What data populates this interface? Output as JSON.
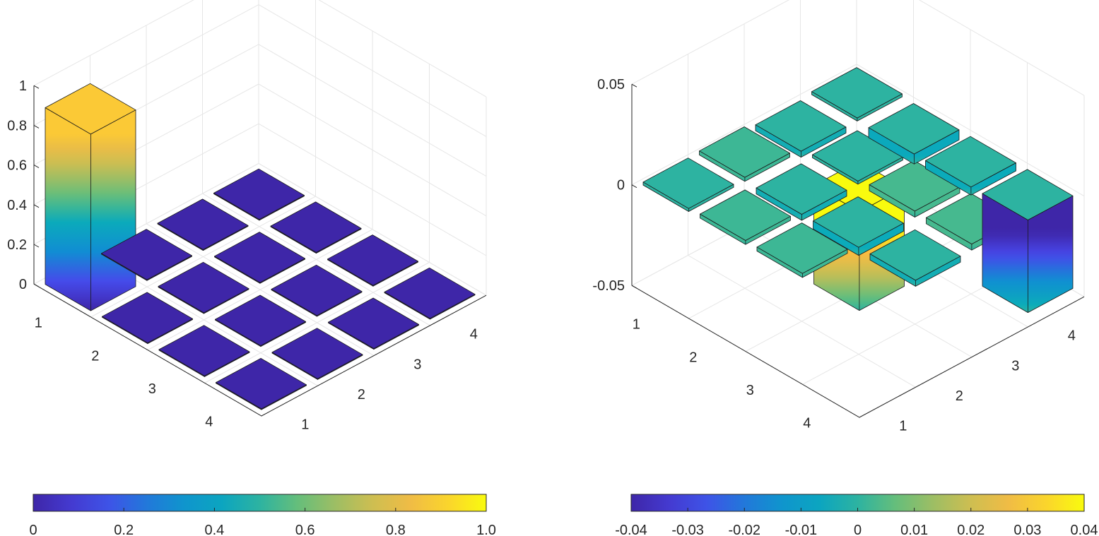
{
  "chart_data": [
    {
      "type": "bar3d",
      "rows": [
        "1",
        "2",
        "3",
        "4"
      ],
      "cols": [
        "1",
        "2",
        "3",
        "4"
      ],
      "z_ticks": [
        "0",
        "0.2",
        "0.4",
        "0.6",
        "0.8",
        "1"
      ],
      "zlim": [
        0,
        1
      ],
      "values": [
        [
          0.89,
          0.0,
          0.0,
          0.0
        ],
        [
          0.0,
          0.0,
          0.0,
          0.0
        ],
        [
          0.0,
          0.0,
          0.0,
          0.0
        ],
        [
          0.0,
          0.0,
          0.0,
          0.0
        ]
      ],
      "colormap": "parula",
      "colorbar": {
        "ticks": [
          "0",
          "0.2",
          "0.4",
          "0.6",
          "0.8",
          "1.0"
        ],
        "range": [
          0,
          1
        ],
        "placement": "bottom"
      },
      "grid": true
    },
    {
      "type": "bar3d",
      "rows": [
        "1",
        "2",
        "3",
        "4"
      ],
      "cols": [
        "1",
        "2",
        "3",
        "4"
      ],
      "z_ticks": [
        "-0.05",
        "0",
        "0.05"
      ],
      "zlim": [
        -0.05,
        0.05
      ],
      "values": [
        [
          0.0,
          0.002,
          -0.003,
          0.0
        ],
        [
          0.002,
          -0.003,
          0.0,
          -0.005
        ],
        [
          0.002,
          -0.004,
          0.003,
          -0.004
        ],
        [
          0.049,
          -0.003,
          0.003,
          -0.046
        ]
      ],
      "colormap": "parula",
      "colorbar": {
        "ticks": [
          "-0.04",
          "-0.03",
          "-0.02",
          "-0.01",
          "0",
          "0.01",
          "0.02",
          "0.03",
          "0.04"
        ],
        "range": [
          -0.04,
          0.04
        ],
        "placement": "bottom"
      },
      "grid": true
    }
  ]
}
